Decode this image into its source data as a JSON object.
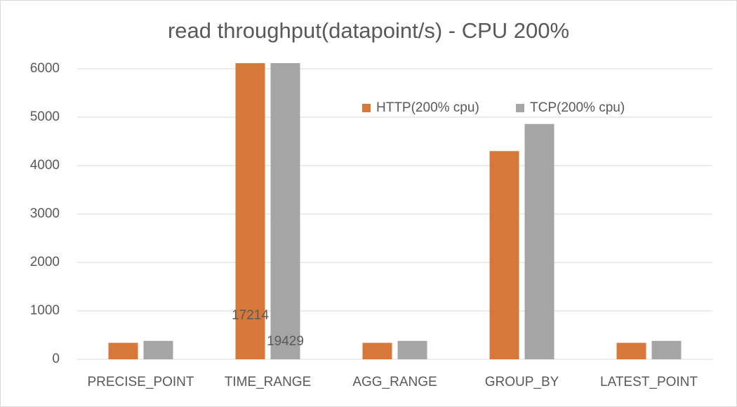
{
  "chart_data": {
    "type": "bar",
    "title": "read throughput(datapoint/s) - CPU 200%",
    "categories": [
      "PRECISE_POINT",
      "TIME_RANGE",
      "AGG_RANGE",
      "GROUP_BY",
      "LATEST_POINT"
    ],
    "series": [
      {
        "name": "HTTP(200% cpu)",
        "color": "#d6783a",
        "values": [
          340,
          17214,
          340,
          4300,
          340
        ],
        "value_labels": [
          null,
          "17214",
          null,
          null,
          null
        ]
      },
      {
        "name": "TCP(200% cpu)",
        "color": "#a5a5a5",
        "values": [
          380,
          19429,
          380,
          4860,
          380
        ],
        "value_labels": [
          null,
          "19429",
          null,
          null,
          null
        ]
      }
    ],
    "ylim": [
      0,
      6000
    ],
    "yticks": [
      0,
      1000,
      2000,
      3000,
      4000,
      5000,
      6000
    ],
    "grid": true,
    "legend": "top-right"
  }
}
